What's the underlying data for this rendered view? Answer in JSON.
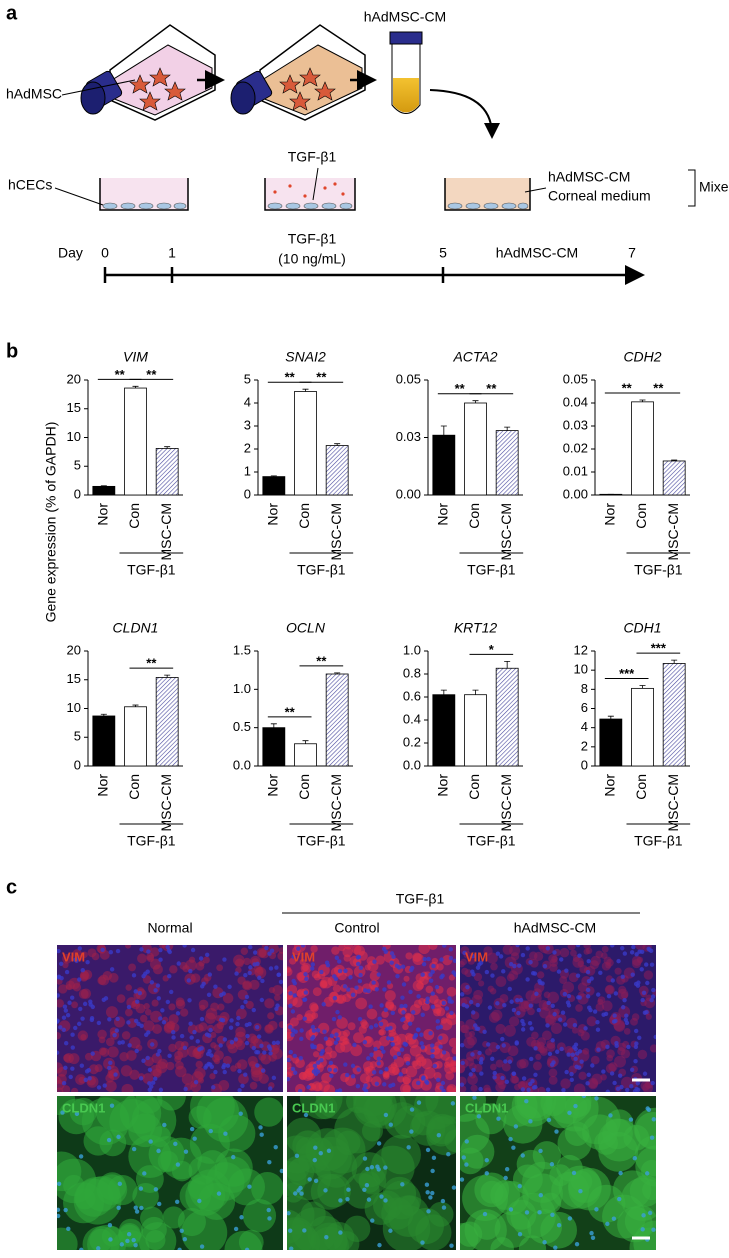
{
  "panel_a": {
    "label": "a",
    "cell_label": "hAdMSC",
    "cm_label": "hAdMSC-CM",
    "cec_label": "hCECs",
    "tgf_label": "TGF-β1",
    "medium_lines": [
      "hAdMSC-CM",
      "Corneal medium"
    ],
    "mixed_label": "Mixed",
    "timeline": {
      "day_label": "Day",
      "days": [
        "0",
        "1",
        "5",
        "7"
      ],
      "tgf_label": "TGF-β1",
      "tgf_dose": "(10 ng/mL)",
      "cm_label": "hAdMSC-CM"
    }
  },
  "panel_b": {
    "label": "b",
    "y_label": "Gene expression (% of GAPDH)"
  },
  "chart_data": [
    {
      "type": "bar",
      "title": "VIM",
      "categories": [
        "Nor",
        "Con",
        "MSC-CM"
      ],
      "values": [
        1.5,
        18.6,
        8.1
      ],
      "errors": [
        0.1,
        0.3,
        0.3
      ],
      "colors": [
        "#000000",
        "#ffffff",
        "#4b4ba0"
      ],
      "hatch": [
        false,
        false,
        true
      ],
      "ylim": [
        0,
        20
      ],
      "yticks": [
        0,
        5,
        10,
        15,
        20
      ],
      "group_label": "TGF-β1",
      "significance": [
        {
          "between": [
            "Nor",
            "Con"
          ],
          "label": "**"
        },
        {
          "between": [
            "Con",
            "MSC-CM"
          ],
          "label": "**"
        }
      ]
    },
    {
      "type": "bar",
      "title": "SNAI2",
      "categories": [
        "Nor",
        "Con",
        "MSC-CM"
      ],
      "values": [
        0.8,
        4.5,
        2.15
      ],
      "errors": [
        0.03,
        0.1,
        0.08
      ],
      "colors": [
        "#000000",
        "#ffffff",
        "#4b4ba0"
      ],
      "hatch": [
        false,
        false,
        true
      ],
      "ylim": [
        0,
        5
      ],
      "yticks": [
        0,
        1,
        2,
        3,
        4,
        5
      ],
      "group_label": "TGF-β1",
      "significance": [
        {
          "between": [
            "Nor",
            "Con"
          ],
          "label": "**"
        },
        {
          "between": [
            "Con",
            "MSC-CM"
          ],
          "label": "**"
        }
      ]
    },
    {
      "type": "bar",
      "title": "ACTA2",
      "categories": [
        "Nor",
        "Con",
        "MSC-CM"
      ],
      "values": [
        0.026,
        0.04,
        0.028
      ],
      "errors": [
        0.004,
        0.001,
        0.0015
      ],
      "colors": [
        "#000000",
        "#ffffff",
        "#4b4ba0"
      ],
      "hatch": [
        false,
        false,
        true
      ],
      "ylim": [
        0,
        0.05
      ],
      "yticks": [
        {
          "value": 0,
          "label": "0.00"
        },
        {
          "value": 0.025,
          "label": "0.03"
        },
        0.05
      ],
      "group_label": "TGF-β1",
      "significance": [
        {
          "between": [
            "Nor",
            "Con"
          ],
          "label": "**"
        },
        {
          "between": [
            "Con",
            "MSC-CM"
          ],
          "label": "**"
        }
      ]
    },
    {
      "type": "bar",
      "title": "CDH2",
      "categories": [
        "Nor",
        "Con",
        "MSC-CM"
      ],
      "values": [
        0.0003,
        0.0405,
        0.0148
      ],
      "errors": [
        0,
        0.0008,
        0.0004
      ],
      "colors": [
        "#000000",
        "#ffffff",
        "#4b4ba0"
      ],
      "hatch": [
        false,
        false,
        true
      ],
      "ylim": [
        0,
        0.05
      ],
      "yticks": [
        {
          "value": 0,
          "label": "0.00"
        },
        0.01,
        0.02,
        0.03,
        0.04,
        0.05
      ],
      "group_label": "TGF-β1",
      "significance": [
        {
          "between": [
            "Nor",
            "Con"
          ],
          "label": "**"
        },
        {
          "between": [
            "Con",
            "MSC-CM"
          ],
          "label": "**"
        }
      ]
    },
    {
      "type": "bar",
      "title": "CLDN1",
      "categories": [
        "Nor",
        "Con",
        "MSC-CM"
      ],
      "values": [
        8.7,
        10.3,
        15.4
      ],
      "errors": [
        0.3,
        0.3,
        0.4
      ],
      "colors": [
        "#000000",
        "#ffffff",
        "#4b4ba0"
      ],
      "hatch": [
        false,
        false,
        true
      ],
      "ylim": [
        0,
        20
      ],
      "yticks": [
        0,
        5,
        10,
        15,
        20
      ],
      "group_label": "TGF-β1",
      "significance": [
        {
          "between": [
            "Con",
            "MSC-CM"
          ],
          "label": "**"
        }
      ]
    },
    {
      "type": "bar",
      "title": "OCLN",
      "categories": [
        "Nor",
        "Con",
        "MSC-CM"
      ],
      "values": [
        0.5,
        0.29,
        1.2
      ],
      "errors": [
        0.05,
        0.04,
        0.015
      ],
      "colors": [
        "#000000",
        "#ffffff",
        "#4b4ba0"
      ],
      "hatch": [
        false,
        false,
        true
      ],
      "ylim": [
        0,
        1.5
      ],
      "yticks": [
        {
          "value": 0,
          "label": "0.0"
        },
        0.5,
        {
          "value": 1,
          "label": "1.0"
        },
        1.5
      ],
      "group_label": "TGF-β1",
      "significance": [
        {
          "between": [
            "Nor",
            "Con"
          ],
          "label": "**"
        },
        {
          "between": [
            "Con",
            "MSC-CM"
          ],
          "label": "**"
        }
      ]
    },
    {
      "type": "bar",
      "title": "KRT12",
      "categories": [
        "Nor",
        "Con",
        "MSC-CM"
      ],
      "values": [
        0.62,
        0.62,
        0.85
      ],
      "errors": [
        0.04,
        0.04,
        0.06
      ],
      "colors": [
        "#000000",
        "#ffffff",
        "#4b4ba0"
      ],
      "hatch": [
        false,
        false,
        true
      ],
      "ylim": [
        0,
        1
      ],
      "yticks": [
        {
          "value": 0,
          "label": "0.0"
        },
        0.2,
        0.4,
        0.6,
        0.8,
        {
          "value": 1,
          "label": "1.0"
        }
      ],
      "group_label": "TGF-β1",
      "significance": [
        {
          "between": [
            "Con",
            "MSC-CM"
          ],
          "label": "*"
        }
      ]
    },
    {
      "type": "bar",
      "title": "CDH1",
      "categories": [
        "Nor",
        "Con",
        "MSC-CM"
      ],
      "values": [
        4.9,
        8.1,
        10.7
      ],
      "errors": [
        0.3,
        0.3,
        0.35
      ],
      "colors": [
        "#000000",
        "#ffffff",
        "#4b4ba0"
      ],
      "hatch": [
        false,
        false,
        true
      ],
      "ylim": [
        0,
        12
      ],
      "yticks": [
        0,
        2,
        4,
        6,
        8,
        10,
        12
      ],
      "group_label": "TGF-β1",
      "significance": [
        {
          "between": [
            "Nor",
            "Con"
          ],
          "label": "***"
        },
        {
          "between": [
            "Con",
            "MSC-CM"
          ],
          "label": "***"
        }
      ]
    }
  ],
  "panel_c": {
    "label": "c",
    "group_label": "TGF-β1",
    "columns": [
      "Normal",
      "Control",
      "hAdMSC-CM"
    ],
    "rows": [
      {
        "stain": "VIM",
        "labels": [
          "VIM",
          "VIM",
          "VIM"
        ]
      },
      {
        "stain": "CLDN1",
        "labels": [
          "CLDN1",
          "CLDN1",
          "CLDN1"
        ]
      }
    ]
  }
}
